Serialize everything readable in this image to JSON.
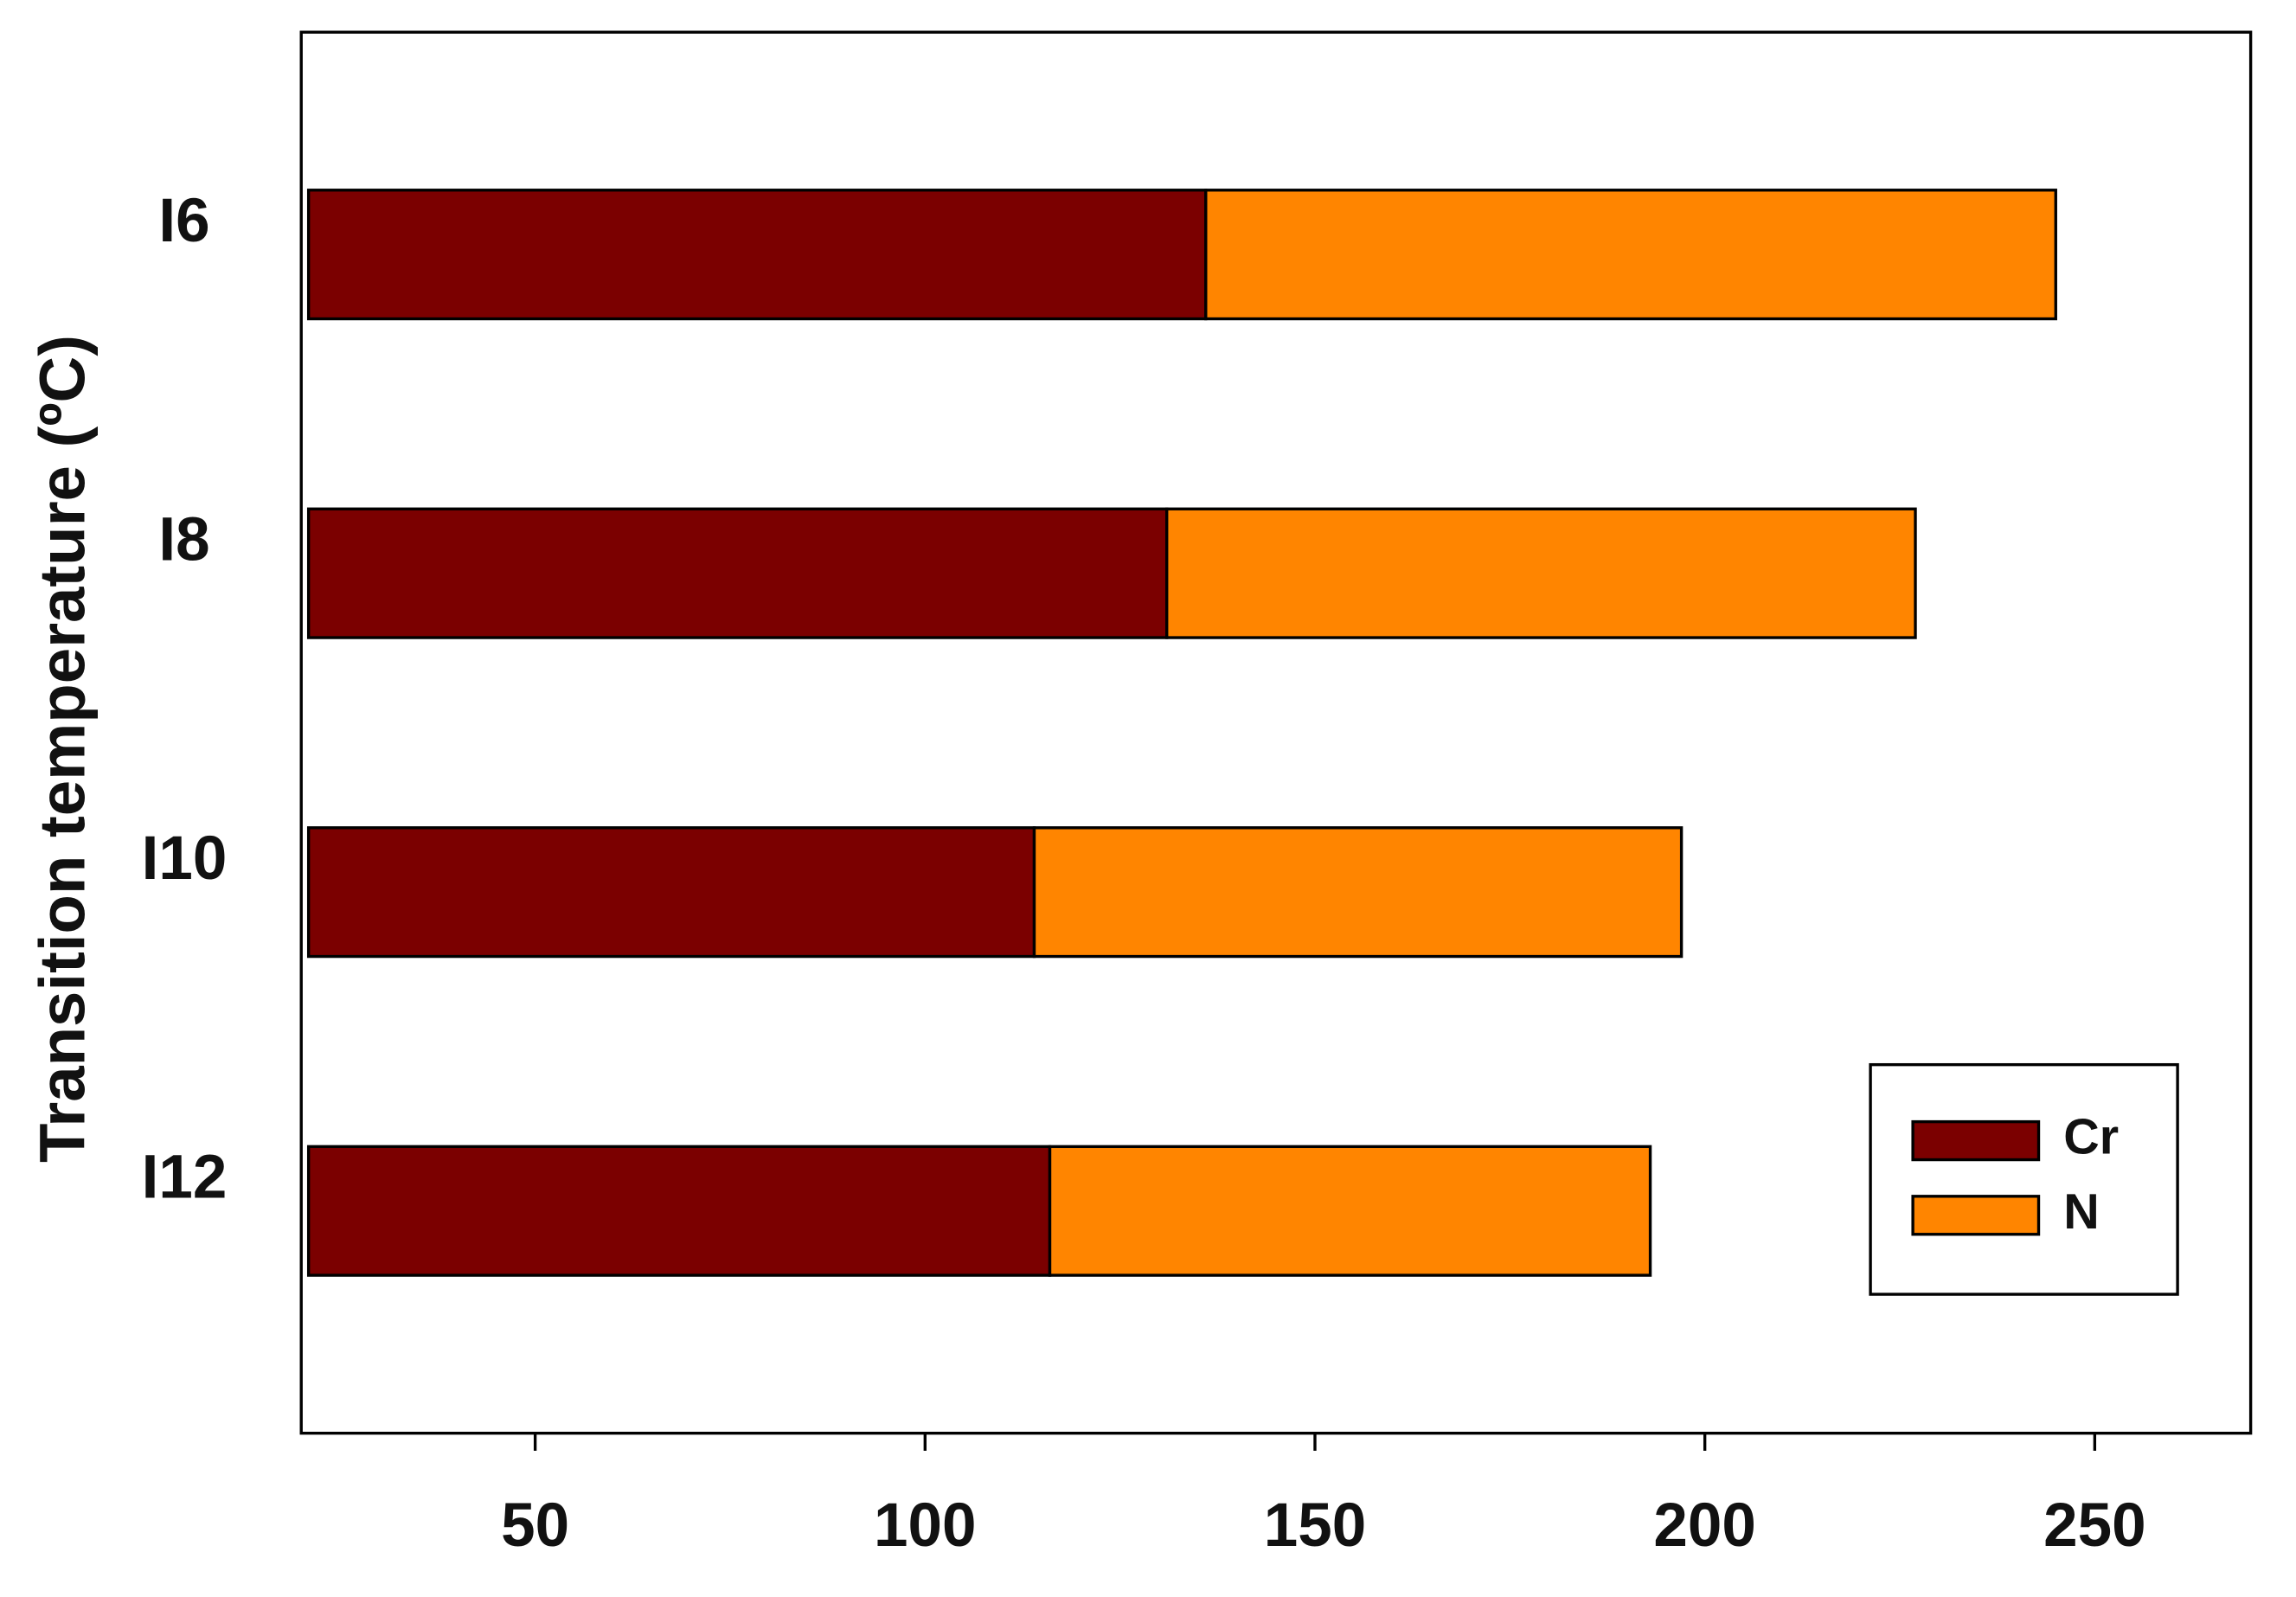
{
  "chart_data": {
    "type": "bar",
    "orientation": "horizontal",
    "stacked": true,
    "ylabel": "Transition temperature (ºC)",
    "categories": [
      "I6",
      "I8",
      "I10",
      "I12"
    ],
    "series": [
      {
        "name": "Cr",
        "color": "#7b0000",
        "values": [
          136,
          131,
          114,
          116
        ]
      },
      {
        "name": "N",
        "color": "#ff8500",
        "values": [
          109,
          96,
          83,
          77
        ]
      }
    ],
    "xlim": [
      20,
      270
    ],
    "xticks": [
      50,
      100,
      150,
      200,
      250
    ],
    "grid": false,
    "legend": "lower right"
  }
}
